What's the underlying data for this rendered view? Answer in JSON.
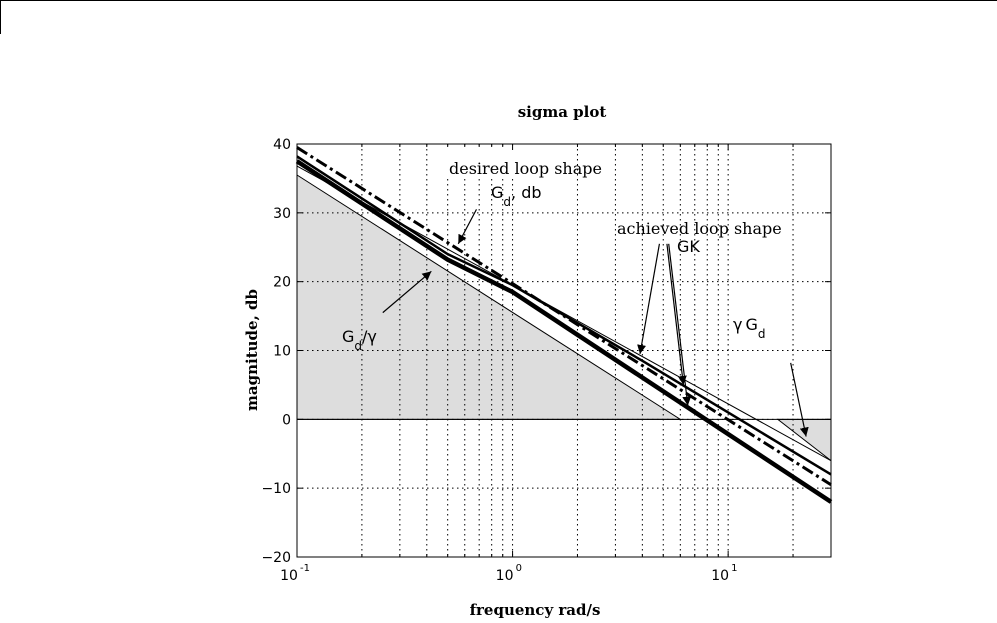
{
  "chart_data": {
    "type": "line",
    "title": "sigma plot",
    "xlabel": "frequency rad/s",
    "ylabel": "magnitude, db",
    "xscale": "log",
    "xlim": [
      0.1,
      30
    ],
    "ylim": [
      -20,
      40
    ],
    "grid": true,
    "x_ticks": [
      {
        "base": "10",
        "exp": "-1",
        "value": 0.1
      },
      {
        "base": "10",
        "exp": "0",
        "value": 1
      },
      {
        "base": "10",
        "exp": "1",
        "value": 10
      }
    ],
    "y_ticks": [
      {
        "label": "40",
        "value": 40
      },
      {
        "label": "30",
        "value": 30
      },
      {
        "label": "20",
        "value": 20
      },
      {
        "label": "10",
        "value": 10
      },
      {
        "label": "0",
        "value": 0
      },
      {
        "label": "−10",
        "value": -10
      },
      {
        "label": "−20",
        "value": -20
      }
    ],
    "series": [
      {
        "style": "dashdot",
        "width": 3,
        "x": [
          0.1,
          30
        ],
        "y": [
          39.5,
          -9.5
        ]
      },
      {
        "style": "solid",
        "width": 2.5,
        "x": [
          0.1,
          0.5,
          1.0,
          4.0,
          30
        ],
        "y": [
          38.2,
          24.0,
          19.5,
          8.5,
          -8.0
        ]
      },
      {
        "style": "solid",
        "width": 4.5,
        "x": [
          0.1,
          0.5,
          1.0,
          30
        ],
        "y": [
          37.5,
          23.2,
          18.5,
          -12.0
        ]
      },
      {
        "style": "solid",
        "width": 1,
        "x": [
          0.1,
          30
        ],
        "y": [
          36.8,
          -6.0
        ]
      }
    ],
    "shaded_regions": [
      {
        "name": "gd_over_gamma_region",
        "x": [
          0.1,
          0.1,
          6.0
        ],
        "y": [
          0,
          35.5,
          0
        ],
        "fill": "#dddddd"
      },
      {
        "name": "gamma_gd_region",
        "x": [
          17,
          30,
          30
        ],
        "y": [
          0,
          0,
          -6.0
        ],
        "fill": "#dddddd"
      }
    ],
    "annotations": {
      "desired": {
        "line1": "desired loop shape",
        "g_base": "G",
        "g_sub": "d",
        "g_suffix": ", db",
        "arrow_from": [
          0.68,
          30.5
        ],
        "arrow_to": [
          0.56,
          25.5
        ],
        "box_x": [
          0.45,
          1.85
        ],
        "box_y": [
          35.2,
          39.4
        ]
      },
      "achieved": {
        "line1": "achieved loop shape",
        "line2": "GK",
        "arrows": [
          {
            "from": [
              4.8,
              25.5
            ],
            "to": [
              3.9,
              9.5
            ]
          },
          {
            "from": [
              5.2,
              25.5
            ],
            "to": [
              6.2,
              5.0
            ]
          },
          {
            "from": [
              5.3,
              25.5
            ],
            "to": [
              6.5,
              2.0
            ]
          }
        ]
      },
      "gd_over_gamma": {
        "g_base": "G",
        "g_sub": "d",
        "g_suffix": "/γ",
        "arrow_from": [
          0.25,
          15.5
        ],
        "arrow_to": [
          0.42,
          21.5
        ]
      },
      "gamma_gd": {
        "prefix": "γ",
        "g_base": "G",
        "g_sub": "d",
        "arrow_from": [
          19.5,
          8.2
        ],
        "arrow_to": [
          23.0,
          -2.5
        ]
      }
    }
  }
}
